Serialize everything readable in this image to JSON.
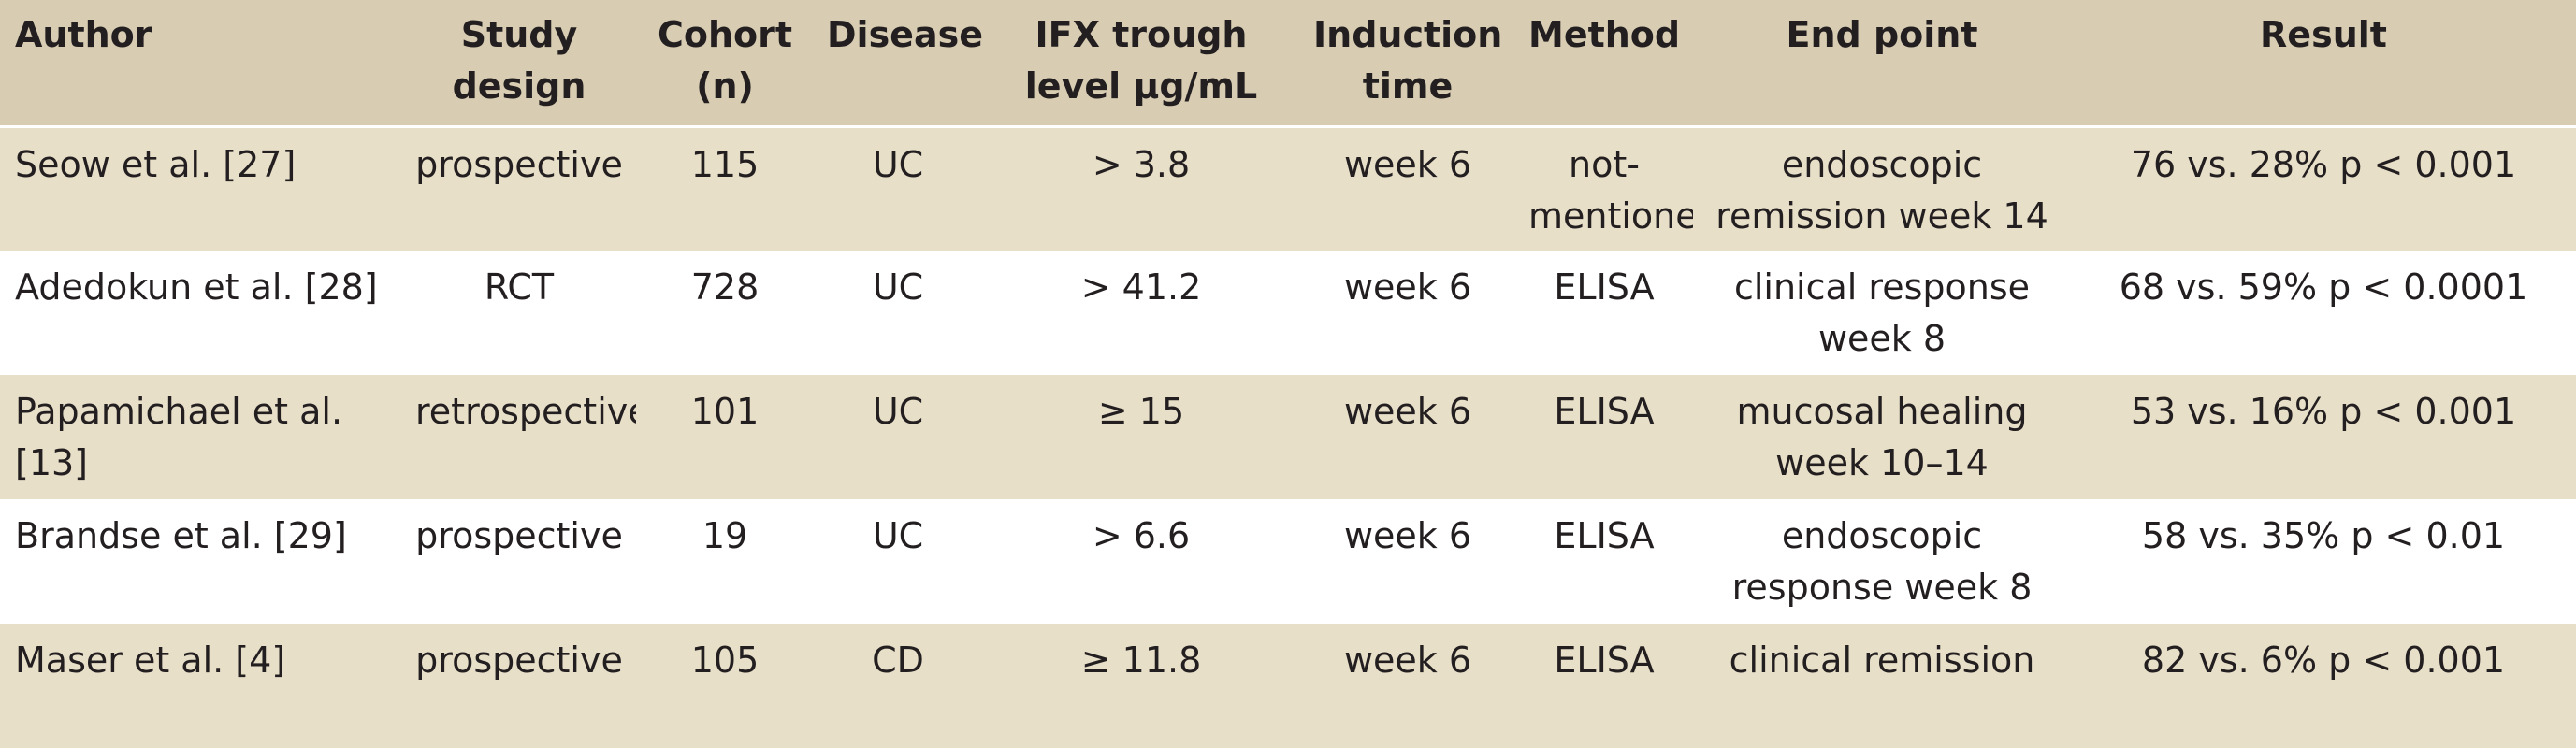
{
  "table": {
    "headers": {
      "author": "Author",
      "study_design": "Study design",
      "cohort": "Cohort (n)",
      "disease": "Disease",
      "ifx_trough": "IFX trough level μg/mL",
      "induction": "Induction time",
      "method": "Method",
      "end_point": "End point",
      "result": "Result"
    },
    "rows": [
      {
        "author": "Seow et al. [27]",
        "study_design": "prospective",
        "cohort": "115",
        "disease": "UC",
        "ifx_trough": "> 3.8",
        "induction": "week 6",
        "method": "not-mentioned",
        "end_point": "endoscopic remission week 14",
        "result": "76 vs. 28% p < 0.001"
      },
      {
        "author": "Adedokun et al. [28]",
        "study_design": "RCT",
        "cohort": "728",
        "disease": "UC",
        "ifx_trough": "> 41.2",
        "induction": "week 6",
        "method": "ELISA",
        "end_point": "clinical response week 8",
        "result": "68 vs. 59% p < 0.0001"
      },
      {
        "author": "Papamichael et al. [13]",
        "study_design": "retrospective",
        "cohort": "101",
        "disease": "UC",
        "ifx_trough": "≥ 15",
        "induction": "week 6",
        "method": "ELISA",
        "end_point": "mucosal healing week 10–14",
        "result": "53 vs. 16% p < 0.001"
      },
      {
        "author": "Brandse et al. [29]",
        "study_design": "prospective",
        "cohort": "19",
        "disease": "UC",
        "ifx_trough": "> 6.6",
        "induction": "week 6",
        "method": "ELISA",
        "end_point": "endoscopic response week 8",
        "result": "58 vs. 35% p < 0.01"
      },
      {
        "author": "Maser et al. [4]",
        "study_design": "prospective",
        "cohort": "105",
        "disease": "CD",
        "ifx_trough": "≥ 11.8",
        "induction": "week 6",
        "method": "ELISA",
        "end_point": "clinical remission",
        "result": "82 vs. 6% p < 0.001"
      }
    ]
  }
}
